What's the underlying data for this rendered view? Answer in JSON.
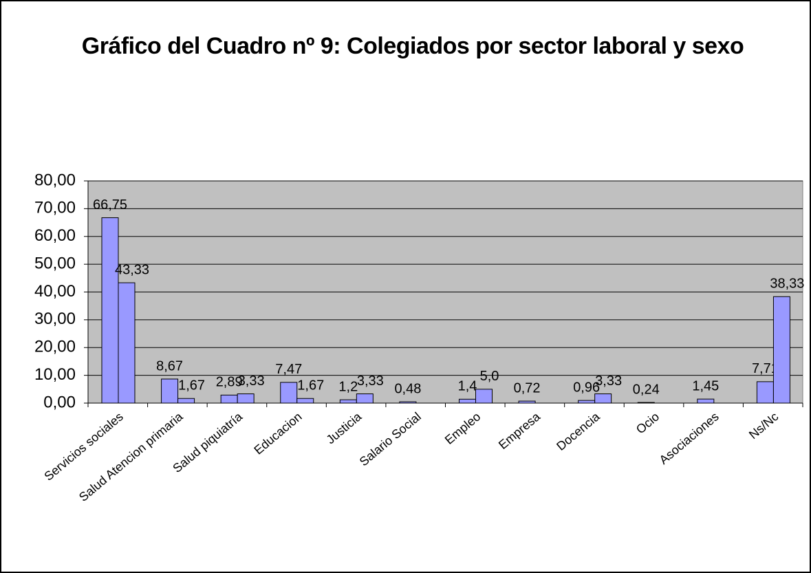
{
  "chart_data": {
    "type": "bar",
    "title": "Gráfico del Cuadro nº 9: Colegiados por sector laboral y sexo",
    "categories": [
      "Servicios sociales",
      "Salud Atencion primaria",
      "Salud piquiatría",
      "Educacion",
      "Justicia",
      "Salario Social",
      "Empleo",
      "Empresa",
      "Docencia",
      "Ocio",
      "Asociaciones",
      "Ns/Nc"
    ],
    "series": [
      {
        "color": "#9999ff",
        "values": [
          66.75,
          8.67,
          2.89,
          7.47,
          1.2,
          0.48,
          1.4,
          0.72,
          0.96,
          0.24,
          1.45,
          7.71
        ],
        "value_labels": [
          "66,75",
          "8,67",
          "2,89",
          "7,47",
          "1,2",
          "0,48",
          "1,4",
          "0,72",
          "0,96",
          "0,24",
          "1,45",
          "7,71"
        ]
      },
      {
        "color": "#9999ff",
        "values": [
          43.33,
          1.67,
          3.33,
          1.67,
          3.33,
          null,
          5.0,
          null,
          3.33,
          null,
          null,
          38.33
        ],
        "value_labels": [
          "43,33",
          "1,67",
          "3,33",
          "1,67",
          "3,33",
          null,
          "5,0",
          null,
          "3,33",
          null,
          null,
          "38,33"
        ]
      }
    ],
    "ylim": [
      0,
      80
    ],
    "yticks": [
      {
        "value": 0,
        "label": "0,00"
      },
      {
        "value": 10,
        "label": "10,00"
      },
      {
        "value": 20,
        "label": "20,00"
      },
      {
        "value": 30,
        "label": "30,00"
      },
      {
        "value": 40,
        "label": "40,00"
      },
      {
        "value": 50,
        "label": "50,00"
      },
      {
        "value": 60,
        "label": "60,00"
      },
      {
        "value": 70,
        "label": "70,00"
      },
      {
        "value": 80,
        "label": "80,00"
      }
    ],
    "grid": true,
    "plot_background": "#c0c0c0"
  }
}
